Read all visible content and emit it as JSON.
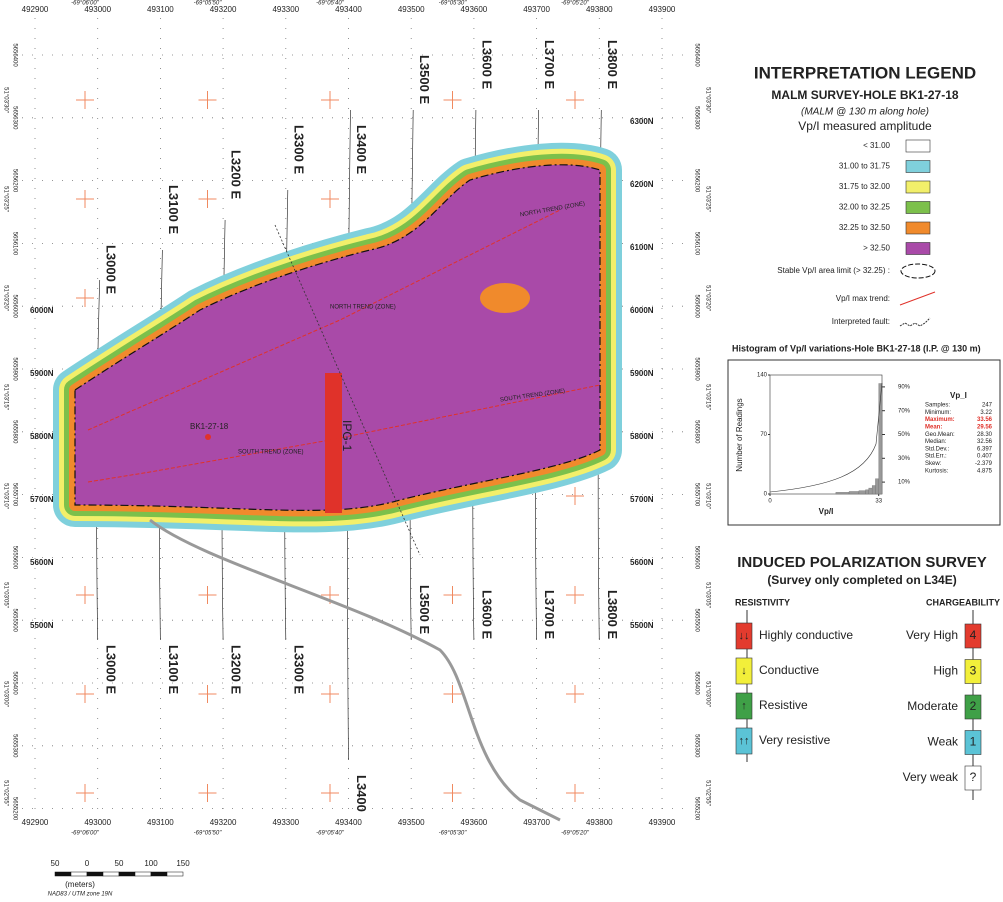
{
  "map": {
    "eastings": [
      "492900",
      "493000",
      "493100",
      "493200",
      "493300",
      "493400",
      "493500",
      "493600",
      "493700",
      "493800",
      "493900"
    ],
    "longitudes": [
      "-69°06'00\"",
      "-69°05'50\"",
      "-69°05'40\"",
      "-69°05'30\"",
      "-69°05'20\""
    ],
    "northings": [
      "5656400",
      "5656300",
      "5656200",
      "5656100",
      "5656000",
      "5655900",
      "5655800",
      "5655700",
      "5655600",
      "5655500",
      "5655400",
      "5655300",
      "5655200"
    ],
    "latitudes": [
      "51°03'30\"",
      "51°03'25\"",
      "51°03'20\"",
      "51°03'15\"",
      "51°03'10\"",
      "51°03'05\"",
      "51°03'00\"",
      "51°02'55\""
    ],
    "stations": [
      "6300N",
      "6200N",
      "6100N",
      "6000N",
      "5900N",
      "5800N",
      "5700N",
      "5600N",
      "5500N"
    ],
    "lines_top": [
      "L3000 E",
      "L3100 E",
      "L3200 E",
      "L3300 E",
      "L3400 E",
      "L3500 E",
      "L3600 E",
      "L3700 E",
      "L3800 E"
    ],
    "lines_bottom": [
      "L3000 E",
      "L3100 E",
      "L3200 E",
      "L3300 E",
      "L3400",
      "L3500 E",
      "L3600 E",
      "L3700 E",
      "L3800 E"
    ],
    "hole": "BK1-27-18",
    "target": "IPG-1",
    "north_trend": "NORTH TREND (ZONE)",
    "south_trend": "SOUTH TREND (ZONE)",
    "scale": {
      "ticks": [
        "50",
        "0",
        "50",
        "100",
        "150"
      ],
      "unit": "(meters)",
      "datum": "NAD83 / UTM zone 19N"
    }
  },
  "legend": {
    "title": "INTERPRETATION LEGEND",
    "subtitle": "MALM SURVEY-HOLE BK1-27-18",
    "note": "(MALM  @ 130 m along hole)",
    "heading": "Vp/I measured amplitude",
    "classes": [
      {
        "label": "< 31.00",
        "color": "#ffffff"
      },
      {
        "label": "31.00 to 31.75",
        "color": "#7fd0dc"
      },
      {
        "label": "31.75 to 32.00",
        "color": "#f2ef6a"
      },
      {
        "label": "32.00 to 32.25",
        "color": "#7cc04b"
      },
      {
        "label": "32.25 to 32.50",
        "color": "#f08a2c"
      },
      {
        "label": ">  32.50",
        "color": "#a94aa8"
      }
    ],
    "limit": "Stable Vp/I area limit (> 32.25) :",
    "trend": "Vp/I max trend:",
    "fault": "Interpreted fault:"
  },
  "histogram": {
    "title": "Histogram of Vp/I variations-Hole BK1-27-18 (I.P. @ 130 m)",
    "ylabel": "Number of Readings",
    "xlabel": "Vp/I",
    "bins": [
      20,
      24,
      27,
      29,
      30,
      31,
      32,
      33,
      34
    ],
    "counts": [
      2,
      3,
      4,
      5,
      7,
      10,
      18,
      130
    ],
    "xlim": [
      0,
      34
    ],
    "xticks": [
      0,
      33
    ],
    "ylim": [
      0,
      140
    ],
    "yticks": [
      0,
      70,
      140
    ],
    "y2lim": [
      0,
      100
    ],
    "y2ticks": [
      {
        "value": 10,
        "label": "10%"
      },
      {
        "value": 30,
        "label": "30%"
      },
      {
        "value": 50,
        "label": "50%"
      },
      {
        "value": 70,
        "label": "70%"
      },
      {
        "value": 90,
        "label": "90%"
      }
    ],
    "stats_title": "Vp_I",
    "stats": [
      [
        "Samples:",
        "247"
      ],
      [
        "Minimum:",
        "3.22"
      ],
      [
        "Maximum:",
        "33.56"
      ],
      [
        "Mean:",
        "29.56"
      ],
      [
        "Geo.Mean:",
        "28.30"
      ],
      [
        "Median:",
        "32.56"
      ],
      [
        "Std.Dev.:",
        "6.397"
      ],
      [
        "Std.Err.:",
        "0.407"
      ],
      [
        "Skew:",
        "-2.379"
      ],
      [
        "Kurtosis:",
        "4.875"
      ]
    ]
  },
  "ip_survey": {
    "title": "INDUCED POLARIZATION SURVEY",
    "subtitle": "(Survey only completed on L34E)",
    "resistivity_heading": "RESISTIVITY",
    "chargeability_heading": "CHARGEABILITY",
    "resistivity": [
      {
        "symbol": "↓↓",
        "label": "Highly conductive",
        "color": "#e33b2e"
      },
      {
        "symbol": "↓",
        "label": "Conductive",
        "color": "#f2ef3a"
      },
      {
        "symbol": "↑",
        "label": "Resistive",
        "color": "#3fa047"
      },
      {
        "symbol": "↑↑",
        "label": "Very resistive",
        "color": "#5bc3d6"
      }
    ],
    "chargeability": [
      {
        "symbol": "4",
        "label": "Very High",
        "color": "#e33b2e"
      },
      {
        "symbol": "3",
        "label": "High",
        "color": "#f2ef3a"
      },
      {
        "symbol": "2",
        "label": "Moderate",
        "color": "#3fa047"
      },
      {
        "symbol": "1",
        "label": "Weak",
        "color": "#5bc3d6"
      },
      {
        "symbol": "?",
        "label": "Very weak",
        "color": "#ffffff"
      }
    ]
  }
}
